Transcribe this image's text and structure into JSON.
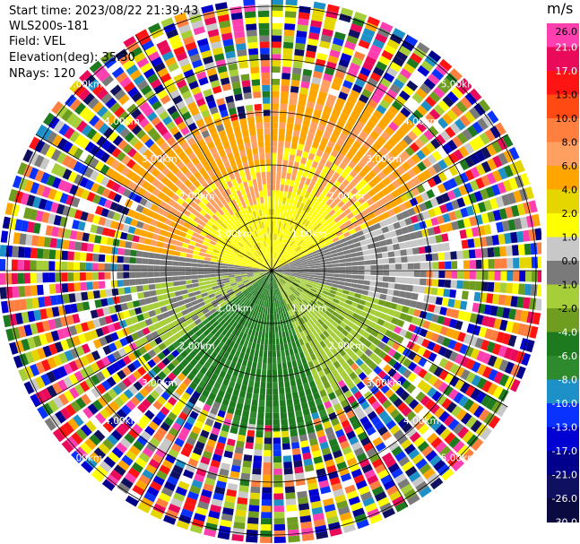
{
  "info": {
    "start_time": "Start time: 2023/08/22 21:39:43",
    "site": "WLS200s-181",
    "field": "Field: VEL",
    "elevation": "Elevation(deg): 35.30",
    "nrays": "NRays: 120"
  },
  "range_rings": {
    "labels_km": [
      "1.00km",
      "2.00km",
      "3.00km",
      "4.00km",
      "5.00km"
    ]
  },
  "colorbar": {
    "unit": "m/s",
    "ticks": [
      "26.0",
      "21.0",
      "17.0",
      "13.0",
      "10.0",
      "8.0",
      "6.0",
      "4.0",
      "2.0",
      "1.0",
      "0.0",
      "-1.0",
      "-2.0",
      "-4.0",
      "-6.0",
      "-8.0",
      "-10.0",
      "-13.0",
      "-17.0",
      "-21.0",
      "-26.0",
      "-30.0"
    ],
    "colors": [
      "#FF3FB0",
      "#EA0A5A",
      "#FF1414",
      "#FF4A14",
      "#FF7F3F",
      "#FFA060",
      "#FFA500",
      "#E6D600",
      "#FFFF00",
      "#C8C8C8",
      "#7A7A7A",
      "#A6CE39",
      "#6E9D1F",
      "#1E7A1E",
      "#2D8A2D",
      "#1E90C8",
      "#0A32FF",
      "#0000D2",
      "#00008C",
      "#101060",
      "#0A0A40"
    ]
  }
}
